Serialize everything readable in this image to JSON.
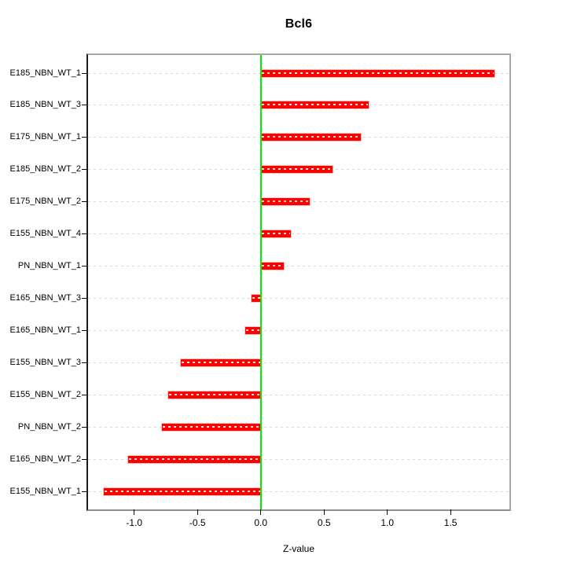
{
  "title": "Bcl6",
  "colors": {
    "bar": "#ff0000",
    "bar_halo": "#ffc2c2",
    "zero_line": "#00ee00",
    "grid": "#d8d8d8",
    "box": "#a9a9a9",
    "axis": "#000000",
    "text": "#000000",
    "background": "#ffffff"
  },
  "chart_data": {
    "type": "bar",
    "orientation": "horizontal",
    "title": "Bcl6",
    "xlabel": "Z-value",
    "ylabel": "",
    "categories": [
      "E185_NBN_WT_1",
      "E185_NBN_WT_3",
      "E175_NBN_WT_1",
      "E185_NBN_WT_2",
      "E175_NBN_WT_2",
      "E155_NBN_WT_4",
      "PN_NBN_WT_1",
      "E165_NBN_WT_3",
      "E165_NBN_WT_1",
      "E155_NBN_WT_3",
      "E155_NBN_WT_2",
      "PN_NBN_WT_2",
      "E165_NBN_WT_2",
      "E155_NBN_WT_1"
    ],
    "values": [
      1.85,
      0.85,
      0.79,
      0.57,
      0.39,
      0.24,
      0.18,
      -0.07,
      -0.12,
      -0.63,
      -0.73,
      -0.78,
      -1.05,
      -1.24
    ],
    "xlim": [
      -1.365,
      1.965
    ],
    "xticks": [
      -1.0,
      -0.5,
      0.0,
      0.5,
      1.0,
      1.5
    ],
    "xtick_labels": [
      "-1.0",
      "-0.5",
      "0.0",
      "0.5",
      "1.0",
      "1.5"
    ],
    "zero_reference_line": 0.0,
    "grid": "horizontal-dashed",
    "legend": "none",
    "sort_order": "descending-top-to-bottom"
  }
}
